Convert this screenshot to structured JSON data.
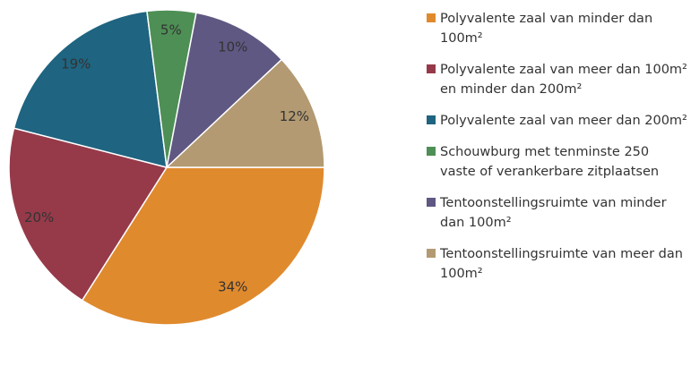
{
  "chart_data": {
    "type": "pie",
    "categories": [
      "Polyvalente zaal van minder dan 100m²",
      "Polyvalente zaal van meer dan 100m² en minder dan 200m²",
      "Polyvalente zaal van meer dan 200m²",
      "Schouwburg met tenminste 250 vaste of verankerbare zitplaatsen",
      "Tentoonstellingsruimte van minder dan 100m²",
      "Tentoonstellingsruimte van meer dan 100m²"
    ],
    "values": [
      34,
      20,
      19,
      5,
      10,
      12
    ],
    "value_labels": [
      "34%",
      "20%",
      "19%",
      "5%",
      "10%",
      "12%"
    ],
    "colors": [
      "#e08a2e",
      "#963a4a",
      "#1f6480",
      "#4e8f55",
      "#5f5882",
      "#b39a72"
    ]
  }
}
